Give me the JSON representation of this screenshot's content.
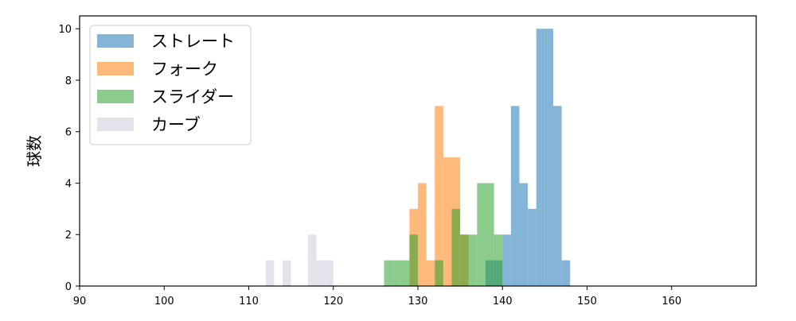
{
  "chart_data": {
    "type": "histogram",
    "ylabel": "球数",
    "xlim": [
      90,
      170
    ],
    "ylim": [
      0,
      10.5
    ],
    "x_ticks": [
      90,
      100,
      110,
      120,
      130,
      140,
      150,
      160
    ],
    "y_ticks": [
      0,
      2,
      4,
      6,
      8,
      10
    ],
    "bin_width": 1,
    "legend_position": "top-left",
    "series": [
      {
        "name": "ストレート",
        "color": "#1f77b4",
        "bins": [
          {
            "x0": 138,
            "x1": 139,
            "count": 1
          },
          {
            "x0": 139,
            "x1": 140,
            "count": 1
          },
          {
            "x0": 140,
            "x1": 141,
            "count": 2
          },
          {
            "x0": 141,
            "x1": 142,
            "count": 7
          },
          {
            "x0": 142,
            "x1": 143,
            "count": 4
          },
          {
            "x0": 143,
            "x1": 144,
            "count": 3
          },
          {
            "x0": 144,
            "x1": 145,
            "count": 10
          },
          {
            "x0": 145,
            "x1": 146,
            "count": 10
          },
          {
            "x0": 146,
            "x1": 147,
            "count": 7
          },
          {
            "x0": 147,
            "x1": 148,
            "count": 1
          }
        ]
      },
      {
        "name": "フォーク",
        "color": "#ff7f0e",
        "bins": [
          {
            "x0": 129,
            "x1": 130,
            "count": 3
          },
          {
            "x0": 130,
            "x1": 131,
            "count": 4
          },
          {
            "x0": 131,
            "x1": 132,
            "count": 1
          },
          {
            "x0": 132,
            "x1": 133,
            "count": 7
          },
          {
            "x0": 133,
            "x1": 134,
            "count": 5
          },
          {
            "x0": 134,
            "x1": 135,
            "count": 5
          },
          {
            "x0": 135,
            "x1": 136,
            "count": 2
          }
        ]
      },
      {
        "name": "スライダー",
        "color": "#2ca02c",
        "bins": [
          {
            "x0": 126,
            "x1": 127,
            "count": 1
          },
          {
            "x0": 127,
            "x1": 128,
            "count": 1
          },
          {
            "x0": 128,
            "x1": 129,
            "count": 1
          },
          {
            "x0": 129,
            "x1": 130,
            "count": 2
          },
          {
            "x0": 132,
            "x1": 133,
            "count": 1
          },
          {
            "x0": 134,
            "x1": 135,
            "count": 3
          },
          {
            "x0": 135,
            "x1": 136,
            "count": 2
          },
          {
            "x0": 136,
            "x1": 137,
            "count": 2
          },
          {
            "x0": 137,
            "x1": 138,
            "count": 4
          },
          {
            "x0": 138,
            "x1": 139,
            "count": 4
          },
          {
            "x0": 139,
            "x1": 140,
            "count": 2
          }
        ]
      },
      {
        "name": "カーブ",
        "color": "#ccccdd",
        "bins": [
          {
            "x0": 112,
            "x1": 113,
            "count": 1
          },
          {
            "x0": 114,
            "x1": 115,
            "count": 1
          },
          {
            "x0": 117,
            "x1": 118,
            "count": 2
          },
          {
            "x0": 118,
            "x1": 119,
            "count": 1
          },
          {
            "x0": 119,
            "x1": 120,
            "count": 1
          }
        ]
      }
    ]
  }
}
